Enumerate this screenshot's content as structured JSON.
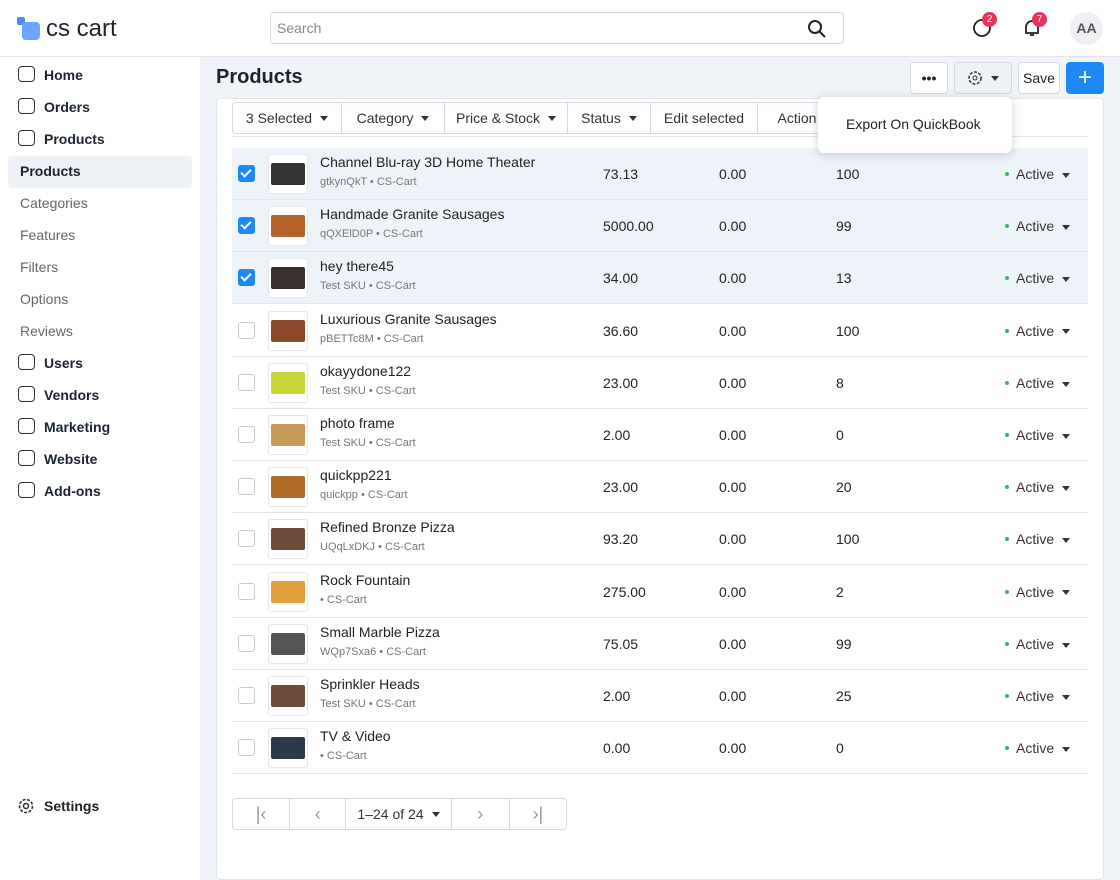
{
  "header": {
    "logo": "cs cart",
    "search_placeholder": "Search",
    "help_badge": "2",
    "notif_badge": "7",
    "avatar": "AA"
  },
  "sidebar": {
    "items": [
      {
        "label": "Home",
        "bold": true
      },
      {
        "label": "Orders",
        "bold": true
      },
      {
        "label": "Products",
        "bold": true
      },
      {
        "label": "Products",
        "bold": false,
        "active": true
      },
      {
        "label": "Categories",
        "bold": false
      },
      {
        "label": "Features",
        "bold": false
      },
      {
        "label": "Filters",
        "bold": false
      },
      {
        "label": "Options",
        "bold": false
      },
      {
        "label": "Reviews",
        "bold": false
      },
      {
        "label": "Users",
        "bold": true
      },
      {
        "label": "Vendors",
        "bold": true
      },
      {
        "label": "Marketing",
        "bold": true
      },
      {
        "label": "Website",
        "bold": true
      },
      {
        "label": "Add-ons",
        "bold": true
      }
    ],
    "settings": "Settings"
  },
  "page": {
    "title": "Products",
    "save": "Save"
  },
  "toolbar": [
    "3 Selected",
    "Category",
    "Price & Stock",
    "Status",
    "Edit selected",
    "Action"
  ],
  "dropdown": [
    "Export On QuickBook"
  ],
  "table": {
    "rows": [
      {
        "name": "Channel Blu-ray 3D Home Theater",
        "sku": "gtkynQkT • CS-Cart",
        "price": "73.13",
        "list_price": "0.00",
        "quantity": "100",
        "status": "Active",
        "checked": true
      },
      {
        "name": "Handmade Granite Sausages",
        "sku": "qQXElD0P • CS-Cart",
        "price": "5000.00",
        "list_price": "0.00",
        "quantity": "99",
        "status": "Active",
        "checked": true
      },
      {
        "name": "hey there45",
        "sku": "Test SKU • CS-Cart",
        "price": "34.00",
        "list_price": "0.00",
        "quantity": "13",
        "status": "Active",
        "checked": true
      },
      {
        "name": "Luxurious Granite Sausages",
        "sku": "pBETTc8M • CS-Cart",
        "price": "36.60",
        "list_price": "0.00",
        "quantity": "100",
        "status": "Active",
        "checked": false
      },
      {
        "name": "okayydone122",
        "sku": "Test SKU • CS-Cart",
        "price": "23.00",
        "list_price": "0.00",
        "quantity": "8",
        "status": "Active",
        "checked": false
      },
      {
        "name": "photo frame",
        "sku": "Test SKU • CS-Cart",
        "price": "2.00",
        "list_price": "0.00",
        "quantity": "0",
        "status": "Active",
        "checked": false
      },
      {
        "name": "quickpp221",
        "sku": "quickpp • CS-Cart",
        "price": "23.00",
        "list_price": "0.00",
        "quantity": "20",
        "status": "Active",
        "checked": false
      },
      {
        "name": "Refined Bronze Pizza",
        "sku": "UQqLxDKJ • CS-Cart",
        "price": "93.20",
        "list_price": "0.00",
        "quantity": "100",
        "status": "Active",
        "checked": false
      },
      {
        "name": "Rock Fountain",
        "sku": "• CS-Cart",
        "price": "275.00",
        "list_price": "0.00",
        "quantity": "2",
        "status": "Active",
        "checked": false
      },
      {
        "name": "Small Marble Pizza",
        "sku": "WQp7Sxa6 • CS-Cart",
        "price": "75.05",
        "list_price": "0.00",
        "quantity": "99",
        "status": "Active",
        "checked": false
      },
      {
        "name": "Sprinkler Heads",
        "sku": "Test SKU • CS-Cart",
        "price": "2.00",
        "list_price": "0.00",
        "quantity": "25",
        "status": "Active",
        "checked": false
      },
      {
        "name": "TV & Video",
        "sku": "• CS-Cart",
        "price": "0.00",
        "list_price": "0.00",
        "quantity": "0",
        "status": "Active",
        "checked": false
      }
    ]
  },
  "pagination": "1–24 of 24"
}
